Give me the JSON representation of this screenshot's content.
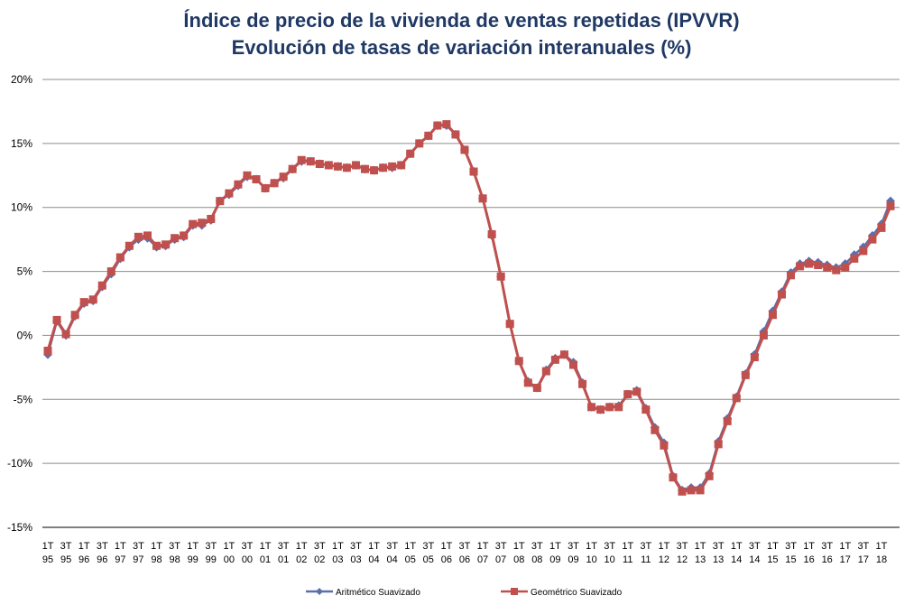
{
  "chart_data": {
    "type": "line",
    "title": "Índice de precio de la vivienda de ventas repetidas (IPVVR)",
    "subtitle": "Evolución de tasas de variación interanuales (%)",
    "ylim": [
      -15,
      20
    ],
    "yticks": [
      "20%",
      "15%",
      "10%",
      "5%",
      "0%",
      "-5%",
      "-10%",
      "-15%"
    ],
    "ytick_values": [
      20,
      15,
      10,
      5,
      0,
      -5,
      -10,
      -15
    ],
    "grid": true,
    "legend_position": "bottom",
    "x_tick_labels": [
      [
        "1T",
        "95"
      ],
      [
        "3T",
        "95"
      ],
      [
        "1T",
        "96"
      ],
      [
        "3T",
        "96"
      ],
      [
        "1T",
        "97"
      ],
      [
        "3T",
        "97"
      ],
      [
        "1T",
        "98"
      ],
      [
        "3T",
        "98"
      ],
      [
        "1T",
        "99"
      ],
      [
        "3T",
        "99"
      ],
      [
        "1T",
        "00"
      ],
      [
        "3T",
        "00"
      ],
      [
        "1T",
        "01"
      ],
      [
        "3T",
        "01"
      ],
      [
        "1T",
        "02"
      ],
      [
        "3T",
        "02"
      ],
      [
        "1T",
        "03"
      ],
      [
        "3T",
        "03"
      ],
      [
        "1T",
        "04"
      ],
      [
        "3T",
        "04"
      ],
      [
        "1T",
        "05"
      ],
      [
        "3T",
        "05"
      ],
      [
        "1T",
        "06"
      ],
      [
        "3T",
        "06"
      ],
      [
        "1T",
        "07"
      ],
      [
        "3T",
        "07"
      ],
      [
        "1T",
        "08"
      ],
      [
        "3T",
        "08"
      ],
      [
        "1T",
        "09"
      ],
      [
        "3T",
        "09"
      ],
      [
        "1T",
        "10"
      ],
      [
        "3T",
        "10"
      ],
      [
        "1T",
        "11"
      ],
      [
        "3T",
        "11"
      ],
      [
        "1T",
        "12"
      ],
      [
        "3T",
        "12"
      ],
      [
        "1T",
        "13"
      ],
      [
        "3T",
        "13"
      ],
      [
        "1T",
        "14"
      ],
      [
        "3T",
        "14"
      ],
      [
        "1T",
        "15"
      ],
      [
        "3T",
        "15"
      ],
      [
        "1T",
        "16"
      ],
      [
        "3T",
        "16"
      ],
      [
        "1T",
        "17"
      ],
      [
        "3T",
        "17"
      ],
      [
        "1T",
        "18"
      ]
    ],
    "series": [
      {
        "name": "Aritmético Suavizado",
        "color": "#5b6fae",
        "marker": "diamond",
        "values": [
          -1.5,
          1.1,
          0.0,
          1.5,
          2.5,
          2.7,
          3.8,
          4.8,
          6.0,
          6.9,
          7.5,
          7.6,
          6.9,
          7.0,
          7.5,
          7.7,
          8.6,
          8.6,
          9.0,
          10.5,
          11.0,
          11.7,
          12.4,
          12.2,
          11.5,
          11.9,
          12.3,
          13.0,
          13.6,
          13.6,
          13.4,
          13.3,
          13.2,
          13.1,
          13.3,
          13.0,
          12.9,
          13.1,
          13.1,
          13.3,
          14.2,
          15.0,
          15.6,
          16.4,
          16.4,
          15.7,
          14.5,
          12.8,
          10.7,
          7.8,
          4.6,
          0.9,
          -2.0,
          -3.6,
          -4.1,
          -2.7,
          -1.8,
          -1.5,
          -2.1,
          -3.7,
          -5.6,
          -5.8,
          -5.6,
          -5.5,
          -4.6,
          -4.3,
          -5.7,
          -7.2,
          -8.4,
          -11.0,
          -12.1,
          -11.9,
          -11.9,
          -10.8,
          -8.3,
          -6.5,
          -4.8,
          -3.0,
          -1.5,
          0.3,
          1.9,
          3.4,
          4.9,
          5.6,
          5.8,
          5.7,
          5.5,
          5.3,
          5.6,
          6.3,
          6.9,
          7.8,
          8.7,
          10.5
        ]
      },
      {
        "name": "Geométrico Suavizado",
        "color": "#c0504d",
        "marker": "square",
        "values": [
          -1.2,
          1.2,
          0.1,
          1.6,
          2.6,
          2.8,
          3.9,
          5.0,
          6.1,
          7.0,
          7.7,
          7.8,
          7.0,
          7.1,
          7.6,
          7.8,
          8.7,
          8.8,
          9.1,
          10.5,
          11.1,
          11.8,
          12.5,
          12.2,
          11.5,
          11.9,
          12.4,
          13.0,
          13.7,
          13.6,
          13.4,
          13.3,
          13.2,
          13.1,
          13.3,
          13.0,
          12.9,
          13.1,
          13.2,
          13.3,
          14.2,
          15.0,
          15.6,
          16.4,
          16.5,
          15.7,
          14.5,
          12.8,
          10.7,
          7.9,
          4.6,
          0.9,
          -2.0,
          -3.7,
          -4.1,
          -2.8,
          -1.9,
          -1.5,
          -2.3,
          -3.8,
          -5.6,
          -5.8,
          -5.6,
          -5.6,
          -4.6,
          -4.4,
          -5.8,
          -7.4,
          -8.6,
          -11.1,
          -12.2,
          -12.1,
          -12.1,
          -11.0,
          -8.5,
          -6.7,
          -4.9,
          -3.1,
          -1.7,
          0.0,
          1.6,
          3.2,
          4.7,
          5.4,
          5.6,
          5.5,
          5.3,
          5.1,
          5.3,
          6.0,
          6.6,
          7.5,
          8.4,
          10.1
        ]
      }
    ]
  }
}
